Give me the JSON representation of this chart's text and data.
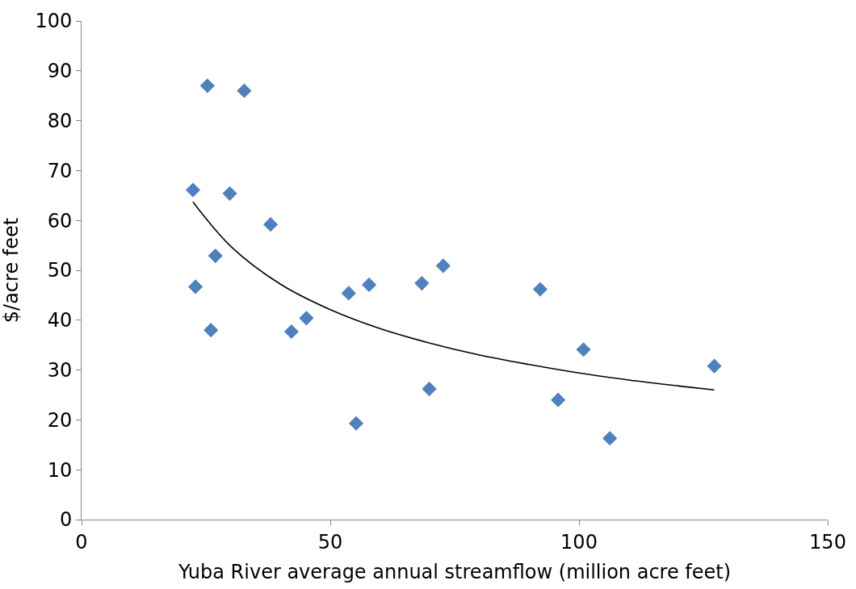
{
  "chart_data": {
    "type": "scatter",
    "xlabel": "Yuba River average annual streamflow (million acre feet)",
    "ylabel": "$/acre feet",
    "xlim": [
      0,
      150
    ],
    "xticks": [
      0,
      50,
      100,
      150
    ],
    "ylim": [
      0,
      100
    ],
    "yticks": [
      0,
      10,
      20,
      30,
      40,
      50,
      60,
      70,
      80,
      90,
      100
    ],
    "marker": "diamond",
    "series": [
      {
        "color": "#4f81bd",
        "x": [
          22.4,
          25.3,
          32.7,
          29.8,
          38.0,
          26.9,
          22.9,
          26.0,
          42.2,
          45.2,
          53.7,
          57.8,
          55.2,
          68.4,
          72.7,
          69.9,
          92.2,
          95.8,
          100.9,
          106.2,
          127.2
        ],
        "values": [
          66.1,
          87.0,
          86.0,
          65.4,
          59.2,
          52.9,
          46.7,
          38.0,
          37.7,
          40.4,
          45.4,
          47.1,
          19.3,
          47.4,
          50.9,
          26.2,
          46.2,
          24.0,
          34.1,
          16.3,
          30.8
        ]
      },
      {
        "type": "line",
        "color": "#000000",
        "marker": "none",
        "line_style": "solid",
        "x": [
          22.4,
          30,
          40,
          50,
          60,
          70,
          80,
          90,
          100,
          110,
          120,
          127.2
        ],
        "values": [
          63.7,
          54.8,
          47.2,
          42.1,
          38.3,
          35.4,
          33.0,
          31.1,
          29.4,
          28.0,
          26.8,
          26.0
        ]
      }
    ]
  }
}
